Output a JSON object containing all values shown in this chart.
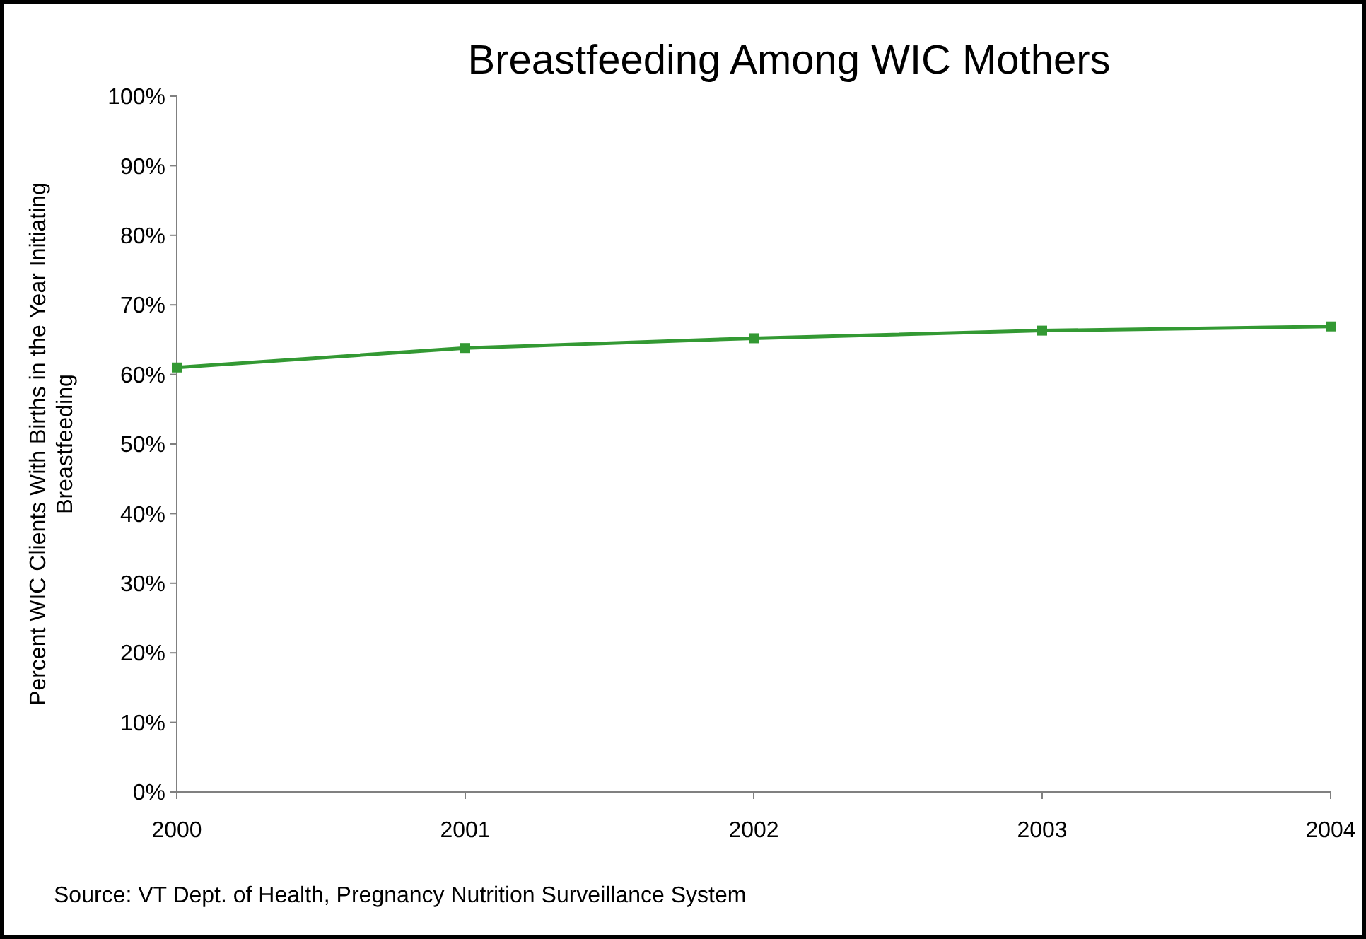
{
  "chart_data": {
    "type": "line",
    "title": "Breastfeeding Among WIC Mothers",
    "ylabel": "Percent WIC Clients With Births in the Year Initiating Breastfeeding",
    "x": [
      2000,
      2001,
      2002,
      2003,
      2004
    ],
    "series": [
      {
        "color": "#339933",
        "values": [
          61.0,
          63.8,
          65.2,
          66.3,
          66.9
        ]
      }
    ],
    "xlim": [
      2000,
      2004
    ],
    "xticks": [
      2000,
      2001,
      2002,
      2003,
      2004
    ],
    "ylim": [
      0,
      100
    ],
    "yticks": [
      {
        "value": 0,
        "label": "0%"
      },
      {
        "value": 10,
        "label": "10%"
      },
      {
        "value": 20,
        "label": "20%"
      },
      {
        "value": 30,
        "label": "30%"
      },
      {
        "value": 40,
        "label": "40%"
      },
      {
        "value": 50,
        "label": "50%"
      },
      {
        "value": 60,
        "label": "60%"
      },
      {
        "value": 70,
        "label": "70%"
      },
      {
        "value": 80,
        "label": "80%"
      },
      {
        "value": 90,
        "label": "90%"
      },
      {
        "value": 100,
        "label": "100%"
      }
    ],
    "grid": false,
    "marker": "square",
    "line_style": "solid",
    "annotations": [
      "Source: VT Dept. of Health,  Pregnancy Nutrition Surveillance System"
    ]
  }
}
